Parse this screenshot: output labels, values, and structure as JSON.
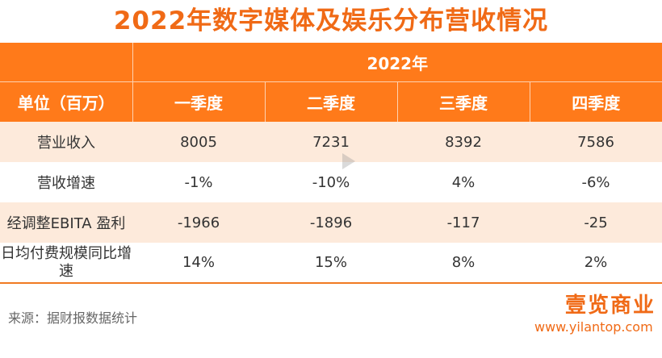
{
  "title": "2022年数字媒体及娱乐分布营收情况",
  "table": {
    "year_header": "2022年",
    "unit_label": "单位（百万）",
    "quarters": [
      "一季度",
      "二季度",
      "三季度",
      "四季度"
    ],
    "rows": [
      {
        "label": "营业收入",
        "values": [
          "8005",
          "7231",
          "8392",
          "7586"
        ]
      },
      {
        "label": "营收增速",
        "values": [
          "-1%",
          "-10%",
          "4%",
          "-6%"
        ]
      },
      {
        "label": "经调整EBITA 盈利",
        "values": [
          "-1966",
          "-1896",
          "-117",
          "-25"
        ]
      },
      {
        "label": "日均付费规模同比增速",
        "values": [
          "14%",
          "15%",
          "8%",
          "2%"
        ]
      }
    ]
  },
  "watermark": "壹览商业",
  "source": "来源：据财报数据统计",
  "brand": {
    "logo_text": "壹览商业",
    "url": "www.yilantop.com"
  },
  "colors": {
    "accent": "#f06a16",
    "header_bg": "#ff7a1a",
    "shade_row": "#fdeadb"
  }
}
